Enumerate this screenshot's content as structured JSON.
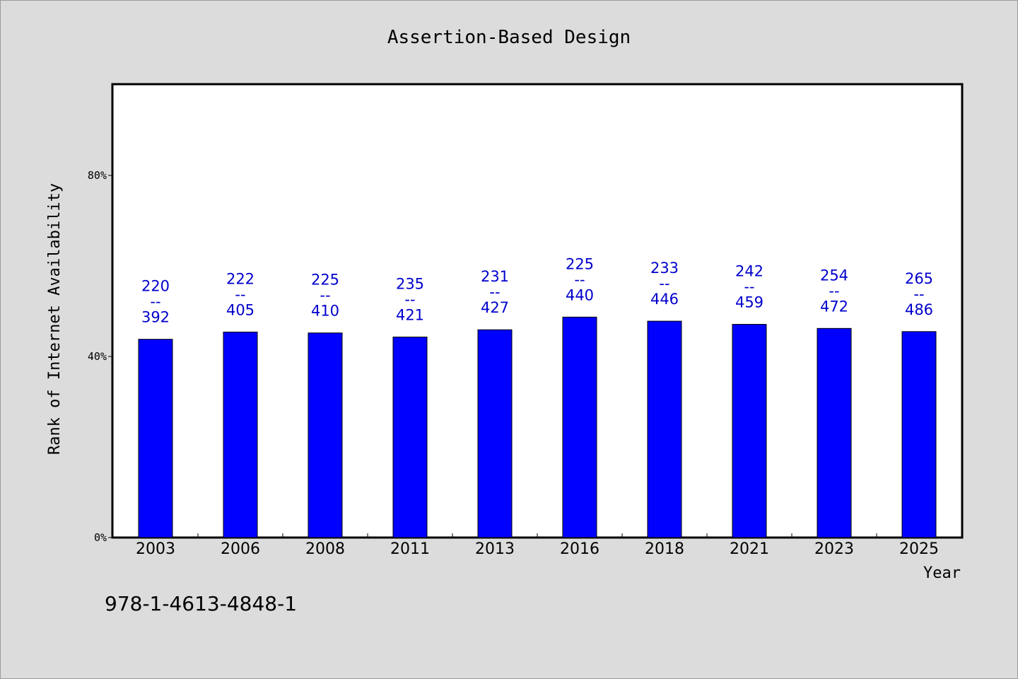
{
  "chart_data": {
    "type": "bar",
    "title": "Assertion-Based Design",
    "xlabel": "Year",
    "ylabel": "Rank of Internet Availability",
    "categories": [
      "2003",
      "2006",
      "2008",
      "2011",
      "2013",
      "2016",
      "2018",
      "2021",
      "2023",
      "2025"
    ],
    "values": [
      43.8,
      45.4,
      45.2,
      44.3,
      45.9,
      48.7,
      47.8,
      47.1,
      46.2,
      45.5
    ],
    "bar_labels": [
      {
        "top": "220",
        "sep": "--",
        "bottom": "392"
      },
      {
        "top": "222",
        "sep": "--",
        "bottom": "405"
      },
      {
        "top": "225",
        "sep": "--",
        "bottom": "410"
      },
      {
        "top": "235",
        "sep": "--",
        "bottom": "421"
      },
      {
        "top": "231",
        "sep": "--",
        "bottom": "427"
      },
      {
        "top": "225",
        "sep": "--",
        "bottom": "440"
      },
      {
        "top": "233",
        "sep": "--",
        "bottom": "446"
      },
      {
        "top": "242",
        "sep": "--",
        "bottom": "459"
      },
      {
        "top": "254",
        "sep": "--",
        "bottom": "472"
      },
      {
        "top": "265",
        "sep": "--",
        "bottom": "486"
      }
    ],
    "yticks": [
      0,
      40,
      80
    ],
    "ytick_labels": [
      "0%",
      "40%",
      "80%"
    ],
    "ylim": [
      0,
      100
    ],
    "grid": false,
    "legend": "none",
    "colors": {
      "bar": "#0000ff",
      "bar_label": "#0000cc",
      "plot_background": "#ffffff",
      "figure_background": "#dcdcdc"
    }
  },
  "footer": {
    "isbn": "978-1-4613-4848-1"
  }
}
